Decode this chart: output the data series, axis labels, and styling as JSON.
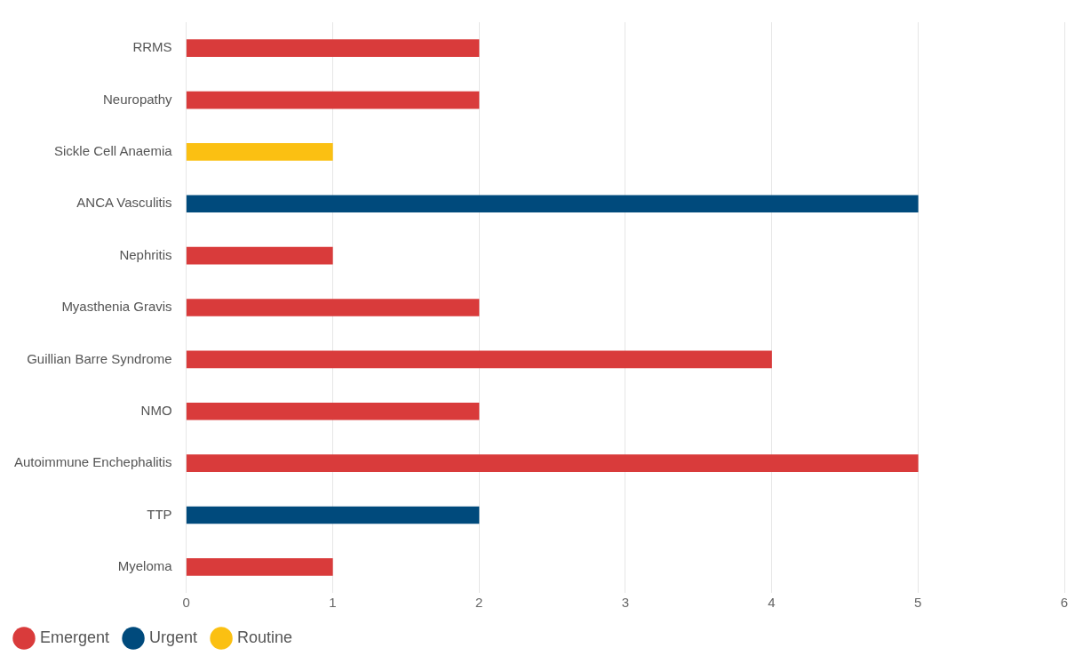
{
  "chart_data": {
    "type": "bar",
    "orientation": "horizontal",
    "stacked": true,
    "categories": [
      "RRMS",
      "Neuropathy",
      "Sickle Cell Anaemia",
      "ANCA Vasculitis",
      "Nephritis",
      "Myasthenia Gravis",
      "Guillian Barre Syndrome",
      "NMO",
      "Autoimmune Enchephalitis",
      "TTP",
      "Myeloma"
    ],
    "series": [
      {
        "name": "Emergent",
        "color": "#d93b3b",
        "values": [
          2,
          2,
          null,
          null,
          1,
          2,
          4,
          2,
          5,
          null,
          1
        ]
      },
      {
        "name": "Urgent",
        "color": "#004a7c",
        "values": [
          null,
          null,
          null,
          5,
          null,
          null,
          null,
          null,
          null,
          2,
          null
        ]
      },
      {
        "name": "Routine",
        "color": "#fbc012",
        "values": [
          null,
          null,
          1,
          null,
          null,
          null,
          null,
          null,
          null,
          null,
          null
        ]
      }
    ],
    "xlim": [
      0,
      6
    ],
    "xticks": [
      0,
      1,
      2,
      3,
      4,
      5,
      6
    ],
    "grid": "x",
    "legend": "bottom left"
  }
}
